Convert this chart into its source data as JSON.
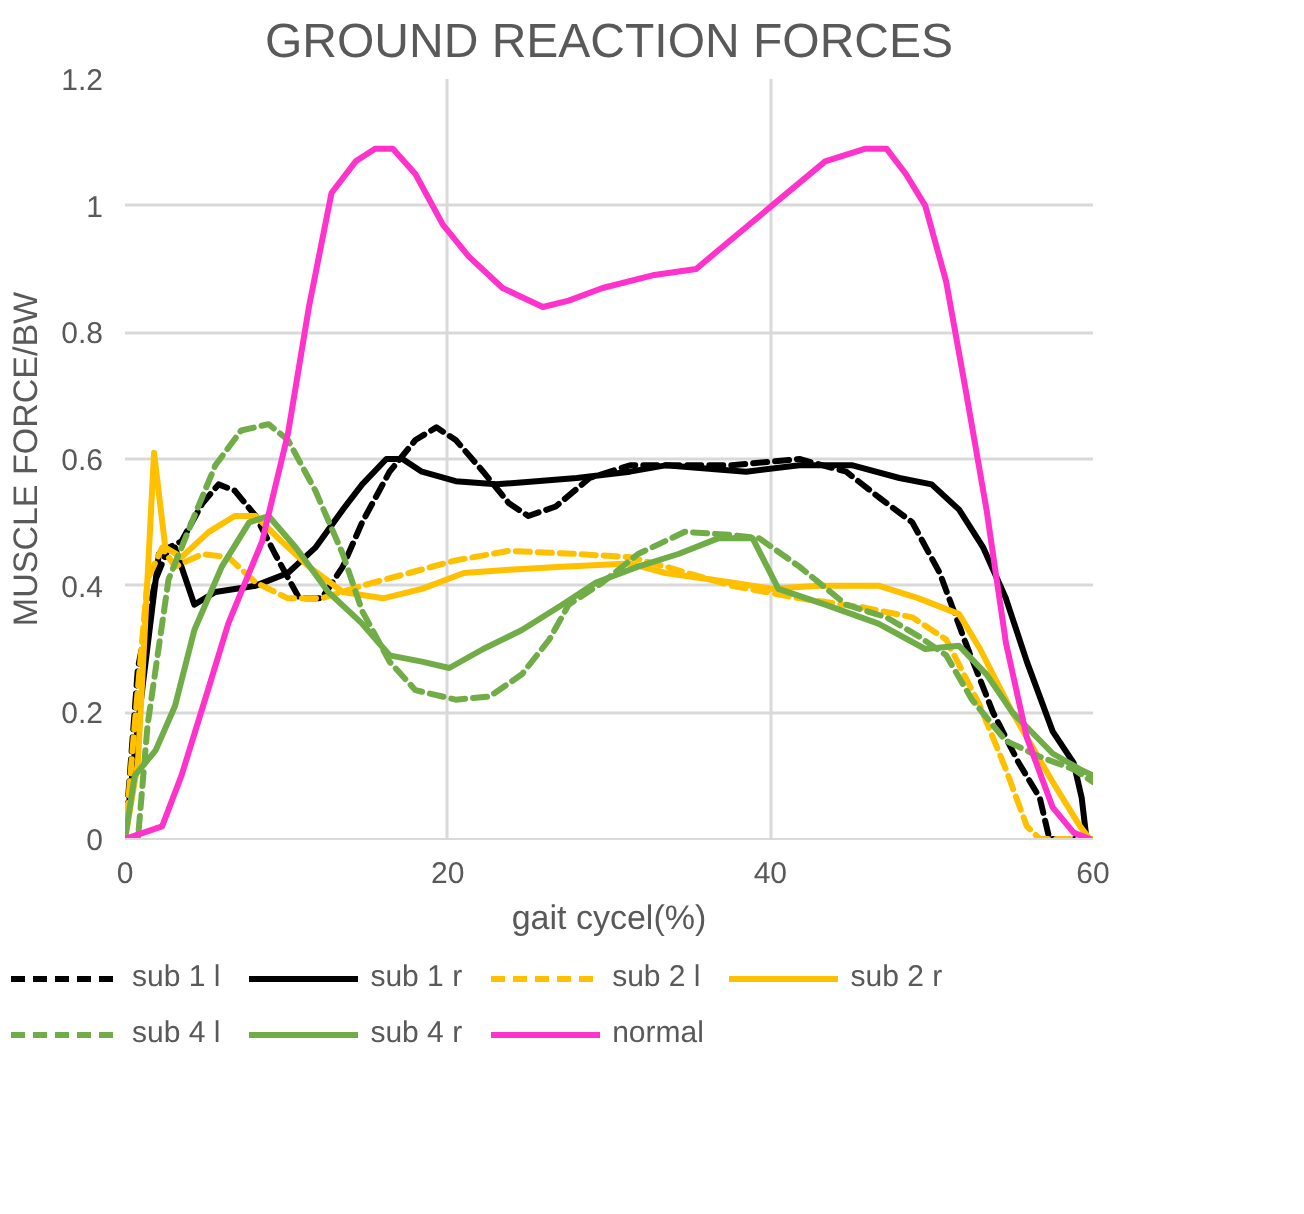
{
  "chart_data": {
    "type": "line",
    "title": "GROUND REACTION FORCES",
    "xlabel": "gait cycel(%)",
    "ylabel": "MUSCLE FORCE/BW",
    "xlim": [
      0,
      60
    ],
    "xticks": [
      0,
      20,
      40,
      60
    ],
    "ylim": [
      0,
      1.2
    ],
    "yticks": [
      0,
      0.2,
      0.4,
      0.6,
      0.8,
      1,
      1.2
    ],
    "grid": true,
    "legend": "bottom",
    "marker": "none",
    "series": [
      {
        "name": "sub 1 l",
        "color": "#000000",
        "line_style": "dashed",
        "x": [
          0,
          0.8,
          1.9,
          2.7,
          3.5,
          4.8,
          5.8,
          6.8,
          8.1,
          9.3,
          10.8,
          12.2,
          13.5,
          14.7,
          16.4,
          18,
          19.3,
          20.5,
          22.2,
          23.8,
          25,
          26.7,
          28.8,
          31.3,
          33.5,
          37.6,
          41.8,
          44.7,
          46.7,
          48.8,
          50.5,
          52.1,
          53.8,
          55.4,
          56.7,
          57.3,
          60
        ],
        "values": [
          0,
          0.27,
          0.41,
          0.46,
          0.47,
          0.53,
          0.56,
          0.55,
          0.51,
          0.45,
          0.38,
          0.38,
          0.43,
          0.5,
          0.58,
          0.63,
          0.65,
          0.63,
          0.58,
          0.53,
          0.51,
          0.525,
          0.57,
          0.59,
          0.59,
          0.59,
          0.6,
          0.58,
          0.54,
          0.5,
          0.42,
          0.31,
          0.2,
          0.12,
          0.065,
          0,
          0
        ]
      },
      {
        "name": "sub 1 r",
        "color": "#000000",
        "line_style": "solid",
        "x": [
          0,
          0.8,
          2.1,
          3.1,
          4.3,
          5.6,
          8.1,
          10.1,
          11.8,
          13.5,
          14.7,
          16.2,
          17.2,
          18.4,
          20.5,
          23,
          25.5,
          28,
          31.3,
          33.5,
          38.5,
          41.8,
          45.1,
          48,
          50,
          51.7,
          53.2,
          54.6,
          55.9,
          57.5,
          58.8,
          59.3,
          59.6,
          60
        ],
        "values": [
          0,
          0.18,
          0.45,
          0.46,
          0.37,
          0.39,
          0.4,
          0.42,
          0.46,
          0.52,
          0.56,
          0.6,
          0.6,
          0.58,
          0.565,
          0.56,
          0.565,
          0.57,
          0.58,
          0.59,
          0.58,
          0.59,
          0.59,
          0.57,
          0.56,
          0.52,
          0.46,
          0.38,
          0.28,
          0.17,
          0.12,
          0.065,
          0,
          0
        ]
      },
      {
        "name": "sub 2 l",
        "color": "#ffc000",
        "line_style": "dashed",
        "x": [
          0,
          0.6,
          1.4,
          2.3,
          3.1,
          4.8,
          6.4,
          8.1,
          10.1,
          12.2,
          14.7,
          17.6,
          20.5,
          23.8,
          28,
          31.3,
          33.5,
          37.6,
          41.8,
          45.9,
          48.8,
          50.9,
          53,
          54.6,
          55.9,
          56.7,
          60
        ],
        "values": [
          0,
          0.18,
          0.41,
          0.46,
          0.43,
          0.45,
          0.445,
          0.405,
          0.38,
          0.38,
          0.4,
          0.42,
          0.44,
          0.455,
          0.45,
          0.445,
          0.43,
          0.4,
          0.38,
          0.365,
          0.35,
          0.315,
          0.21,
          0.11,
          0.02,
          0,
          0
        ]
      },
      {
        "name": "sub 2 r",
        "color": "#ffc000",
        "line_style": "solid",
        "x": [
          0,
          0.8,
          1.8,
          2.5,
          3.5,
          5.2,
          6.8,
          8.1,
          9.7,
          11.4,
          13.5,
          16,
          18.4,
          21,
          23.8,
          27.1,
          31.3,
          33.5,
          37.6,
          40.1,
          43,
          46.7,
          49.2,
          51.7,
          53,
          55,
          57.5,
          59.2,
          59.8,
          60
        ],
        "values": [
          0,
          0.12,
          0.61,
          0.46,
          0.445,
          0.485,
          0.51,
          0.51,
          0.47,
          0.43,
          0.39,
          0.38,
          0.395,
          0.42,
          0.425,
          0.43,
          0.435,
          0.42,
          0.405,
          0.395,
          0.4,
          0.4,
          0.38,
          0.355,
          0.3,
          0.2,
          0.09,
          0.02,
          0,
          0
        ]
      },
      {
        "name": "sub 4 l",
        "color": "#70ad47",
        "line_style": "dashed",
        "x": [
          0,
          0.8,
          1.4,
          2.7,
          4.3,
          5.6,
          7.2,
          8.9,
          10.1,
          11.8,
          13.5,
          14.7,
          16.4,
          18,
          20.5,
          22.6,
          24.6,
          26.3,
          27.5,
          29.6,
          31.8,
          34.7,
          37.6,
          39.3,
          41.8,
          44.7,
          47.2,
          49.2,
          50.9,
          52.5,
          54.6,
          56.7,
          58.8,
          60
        ],
        "values": [
          0,
          0,
          0.18,
          0.41,
          0.51,
          0.59,
          0.645,
          0.655,
          0.63,
          0.55,
          0.45,
          0.36,
          0.28,
          0.235,
          0.22,
          0.225,
          0.26,
          0.315,
          0.37,
          0.405,
          0.45,
          0.485,
          0.48,
          0.475,
          0.43,
          0.37,
          0.35,
          0.32,
          0.29,
          0.22,
          0.155,
          0.13,
          0.11,
          0.09
        ]
      },
      {
        "name": "sub 4 r",
        "color": "#70ad47",
        "line_style": "solid",
        "x": [
          0,
          0.6,
          1.9,
          3.1,
          4.3,
          6,
          7.7,
          8.9,
          10.6,
          12.6,
          14.7,
          16.4,
          18.4,
          20.1,
          22.2,
          24.6,
          27.1,
          29.2,
          31.8,
          34.3,
          36.8,
          38.9,
          40.5,
          43.4,
          46.7,
          49.6,
          51.7,
          53.4,
          55,
          57.5,
          59.2,
          60
        ],
        "values": [
          0,
          0.1,
          0.14,
          0.21,
          0.33,
          0.43,
          0.5,
          0.51,
          0.46,
          0.39,
          0.34,
          0.29,
          0.28,
          0.27,
          0.3,
          0.33,
          0.37,
          0.405,
          0.43,
          0.45,
          0.475,
          0.475,
          0.395,
          0.37,
          0.34,
          0.3,
          0.305,
          0.26,
          0.2,
          0.135,
          0.11,
          0.1
        ]
      },
      {
        "name": "normal",
        "color": "#ff33cc",
        "line_style": "solid",
        "x": [
          0,
          2.3,
          3.5,
          5.2,
          6.4,
          8.5,
          10.1,
          11.4,
          12.8,
          14.3,
          15.5,
          16.6,
          18,
          19.7,
          21.3,
          23.4,
          25.9,
          27.5,
          29.6,
          32.7,
          35.4,
          36.8,
          40.1,
          43.4,
          45.9,
          47.2,
          48.4,
          49.6,
          50.9,
          52.1,
          53.4,
          54.6,
          55.9,
          57.5,
          58.8,
          59.8
        ],
        "values": [
          0,
          0.02,
          0.1,
          0.24,
          0.34,
          0.47,
          0.64,
          0.84,
          1.02,
          1.07,
          1.09,
          1.09,
          1.05,
          0.97,
          0.92,
          0.87,
          0.84,
          0.85,
          0.87,
          0.89,
          0.9,
          0.93,
          1.0,
          1.07,
          1.09,
          1.09,
          1.05,
          1.0,
          0.88,
          0.71,
          0.52,
          0.31,
          0.16,
          0.05,
          0.01,
          0
        ]
      }
    ]
  }
}
